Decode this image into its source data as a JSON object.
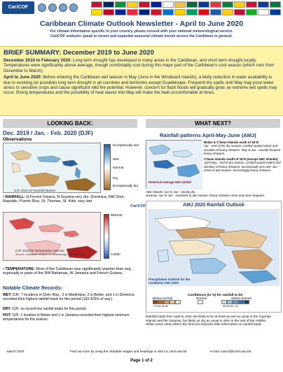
{
  "header": {
    "logo_text": "CariCOF",
    "flag_colors": [
      "#c8102e",
      "#002868",
      "#009639",
      "#fcd116",
      "#ce1126",
      "#00209f",
      "#ffffff",
      "#f4c430",
      "#006b3f",
      "#0038a8",
      "#ef3340",
      "#00843d",
      "#ffcd00",
      "#d21034",
      "#003da5",
      "#007a3d",
      "#fedd00",
      "#bf0a30",
      "#002395",
      "#ed2939",
      "#00247d",
      "#cf142b",
      "#0072c6",
      "#ffd100",
      "#009e60",
      "#e30a17",
      "#1e5aa8",
      "#f7d117",
      "#c60c30",
      "#12ad2b",
      "#ffffff",
      "#003893"
    ]
  },
  "title": "Caribbean Climate Outlook Newsletter - April to June 2020",
  "subnote": {
    "line1": "For climate information specific to your country, please consult with your national meteorological service.",
    "line2": "CariCOF outlooks speak to recent and expected seasonal climate trends across the Caribbean in general."
  },
  "brief": {
    "heading": "BRIEF SUMMARY: December 2019 to June 2020",
    "p1_lead": "December 2019 to February 2020:",
    "p1": "Long term drought has developed in many areas in the Caribbean, and short term drought locally. Temperatures were significantly above average, though comfortably cool during this major part of the Caribbean's cool season (which runs from December to March).",
    "p2_lead": "April to June 2020:",
    "p2": "Before entering the Caribbean wet season in May (June in the Windward Islands), a likely reduction in water availability is due to evolving (or possible) long term drought in all countries and territories except Guadeloupe. Frequent dry spells until May may pose water stress to sensitive crops and cause significant wild fire potential. However, concern for flash floods will gradually grow, as extreme wet spells may occur. Rising temperatures and the possibility of heat waves into May will make the heat uncomfortable at times."
  },
  "looking_back": {
    "heading": "LOOKING BACK:",
    "period": "Dec. 2019 / Jan. - Feb. 2020 (DJF)",
    "observations": "Observations",
    "map1_caption": "DJF 2019-20 Rainfall Monitor",
    "precip_scale": [
      "Exceptionally wet",
      "Wet",
      "Normal",
      "Dry",
      "Exceptionally dry"
    ],
    "rainfall_bullet_lead": "RAINFALL:",
    "rainfall_bullet": "N French Guiana, N Guyana very dry; Dominica, NW Dom. Republic, Puerto Rico, St. Thomas, St. Kitts, very wet.",
    "map2_caption": "DJF 2019/20 Temperature Monitor",
    "map2_source": "Source: Caribbean Institute for Meteorology and Hydrology",
    "temp_scale_top": "Warmer",
    "temp_scale_bottom": "Colder",
    "temp_bullet_lead": "TEMPERATURE:",
    "temp_bullet": "Most of the Caribbean was significantly warmer than avg., especially in parts of the NW Bahamas, W Jamaica and French Guiana.",
    "notable_heading": "Notable Climate Records:",
    "records": [
      {
        "label": "WET:",
        "text": "DJF: 7 locations in Dom. Rep., 3 in Martinique, 2 in Belize, and 1 in Dominica recorded their highest rainfall totals for this period (165-425% of avg.)."
      },
      {
        "label": "DRY:",
        "text": "DJF: no record low rainfall totals for this period."
      },
      {
        "label": "HOT:",
        "text": "DJF: 1 location in Belize and 1 in Jamaica recorded their highest minimum temperatures for the season."
      }
    ]
  },
  "what_next": {
    "heading": "WHAT NEXT?",
    "amj_title": "Rainfall patterns April-May-June (AMJ)",
    "amj_map_caption": "Historical average AMJ rainfall",
    "amj_right": [
      {
        "bold": "Belize & C'bean Islands north of 16°N",
        "text": "Apr - end of the dry season. Limited spatial extent and duration of heavy showers. May & Jun - usually frequent heavy showers."
      },
      {
        "bold": "C'bean Islands south of 16°N (except ABC Islands):",
        "text": "April-May - end of dry season. Limited spatial extent and duration of heavy showers; occasionally very wet. Jun - onset of wet season. Increasingly heavy showers."
      }
    ],
    "amj_low": [
      "ABC Islands: Apr to Jun - mostly dry.",
      "Guianas: Apr to Jun - transition to wet season; heavy showers more and more frequent."
    ],
    "outlook_title": "AMJ 2020 Rainfall Outlook",
    "cimh_label": "CariCOF",
    "outlook_map_caption": "Precipitation Outlook for the Caribbean AMJ 2020",
    "confidence_label": "Confidence (in %) for rainfall to be:",
    "categories": [
      "Below-normal",
      "Normal",
      "Above-normal"
    ],
    "below_colors": [
      "#8b4513",
      "#b5651d",
      "#d2a06b",
      "#e6c79a",
      "#f5e6c8"
    ],
    "above_colors": [
      "#cfe3f3",
      "#9cc5e8",
      "#5c9fd6",
      "#2c6fb8",
      "#153e7a"
    ],
    "below_ticks": "+70  60  50  40",
    "above_ticks": "40  50  60  +70",
    "outlook_text": "Rainfall totals from April to June are likely to be at least as wet as usual in the Cayman Islands and the Guianas, but likely as dry as usual or drier in the rest of the Antilles.",
    "outlook_text2": "White areas show where the forecast indicates little information on rainfall totals."
  },
  "footer": {
    "date": "March 2020",
    "links": "Find out more by using the clickable images and headings or visit rcc.cimh.edu.bb",
    "email": "e-mail: caricof@cimh.edu.bb",
    "page": "Page 1 of 2"
  }
}
